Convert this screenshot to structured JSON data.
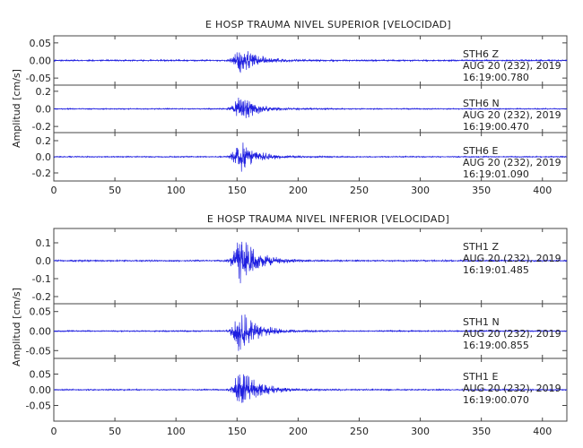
{
  "colors": {
    "trace": "#1f1fe0",
    "axis": "#444444",
    "text": "#222222"
  },
  "chart_data": [
    {
      "type": "line",
      "title": "E HOSP TRAUMA NIVEL SUPERIOR [VELOCIDAD]",
      "ylabel": "Amplitud [cm/s]",
      "xlim": [
        0,
        420
      ],
      "xticks": [
        0,
        50,
        100,
        150,
        200,
        250,
        300,
        350,
        400
      ],
      "xtick_labels": [
        "0",
        "50",
        "100",
        "150",
        "200",
        "250",
        "300",
        "350",
        "400"
      ],
      "event_start": 140,
      "peak_time": 152,
      "series": [
        {
          "name": "Z",
          "station_label": "STH6   Z",
          "date_label": "AUG 20 (232), 2019",
          "time_label": "16:19:00.780",
          "ylim": [
            -0.07,
            0.07
          ],
          "yticks": [
            0.05,
            0.0,
            -0.05
          ],
          "ytick_labels": [
            "0.05",
            "0.00",
            "-0.05"
          ],
          "peak_amplitude": 0.045,
          "noise_amplitude": 0.002,
          "seed": 11
        },
        {
          "name": "N",
          "station_label": "STH6   N",
          "date_label": "AUG 20 (232), 2019",
          "time_label": "16:19:00.470",
          "ylim": [
            -0.27,
            0.27
          ],
          "yticks": [
            0.2,
            0.0,
            -0.2
          ],
          "ytick_labels": [
            "0.2",
            "0.0",
            "-0.2"
          ],
          "peak_amplitude": 0.17,
          "noise_amplitude": 0.006,
          "seed": 23
        },
        {
          "name": "E",
          "station_label": "STH6   E",
          "date_label": "AUG 20 (232), 2019",
          "time_label": "16:19:01.090",
          "ylim": [
            -0.3,
            0.3
          ],
          "yticks": [
            0.2,
            0.0,
            -0.2
          ],
          "ytick_labels": [
            "0.2",
            "0.0",
            "-0.2"
          ],
          "peak_amplitude": 0.22,
          "noise_amplitude": 0.007,
          "seed": 37
        }
      ]
    },
    {
      "type": "line",
      "title": "E HOSP TRAUMA NIVEL INFERIOR [VELOCIDAD]",
      "ylabel": "Amplitud [cm/s]",
      "xlim": [
        0,
        420
      ],
      "xticks": [
        0,
        50,
        100,
        150,
        200,
        250,
        300,
        350,
        400
      ],
      "xtick_labels": [
        "0",
        "50",
        "100",
        "150",
        "200",
        "250",
        "300",
        "350",
        "400"
      ],
      "event_start": 140,
      "peak_time": 152,
      "series": [
        {
          "name": "Z",
          "station_label": "STH1   Z",
          "date_label": "AUG 20 (232), 2019",
          "time_label": "16:19:01.485",
          "ylim": [
            -0.24,
            0.18
          ],
          "yticks": [
            0.1,
            0.0,
            -0.1,
            -0.2
          ],
          "ytick_labels": [
            "0.1",
            "0.0",
            "-0.1",
            "-0.2"
          ],
          "peak_amplitude": 0.16,
          "noise_amplitude": 0.004,
          "seed": 51
        },
        {
          "name": "N",
          "station_label": "STH1   N",
          "date_label": "AUG 20 (232), 2019",
          "time_label": "16:19:00.855",
          "ylim": [
            -0.07,
            0.07
          ],
          "yticks": [
            0.05,
            0.0,
            -0.05
          ],
          "ytick_labels": [
            "0.05",
            "0.00",
            "-0.05"
          ],
          "peak_amplitude": 0.06,
          "noise_amplitude": 0.0015,
          "seed": 67
        },
        {
          "name": "E",
          "station_label": "STH1   E",
          "date_label": "AUG 20 (232), 2019",
          "time_label": "16:19:00.070",
          "ylim": [
            -0.1,
            0.1
          ],
          "yticks": [
            0.05,
            0.0,
            -0.05
          ],
          "ytick_labels": [
            "0.05",
            "0.00",
            "-0.05"
          ],
          "peak_amplitude": 0.08,
          "noise_amplitude": 0.002,
          "seed": 79
        }
      ]
    }
  ]
}
